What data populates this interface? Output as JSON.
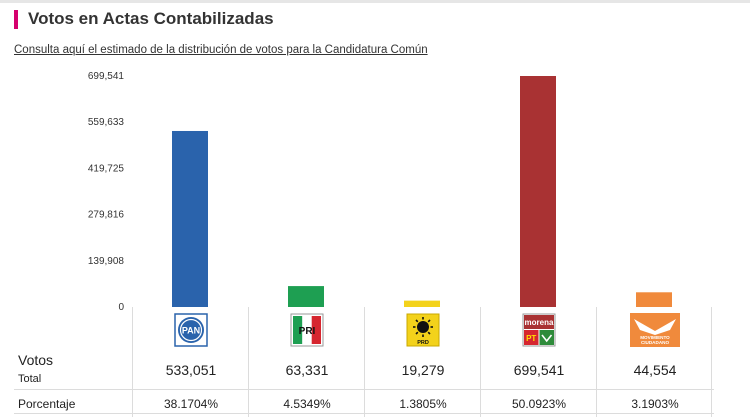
{
  "header": {
    "title": "Votos en Actas Contabilizadas",
    "link_text": "Consulta aquí el estimado de la distribución de votos para la Candidatura Común"
  },
  "colors": {
    "accent": "#d6006e",
    "pan": "#2a63ac",
    "pri": "#1e9f52",
    "prd": "#f3d21b",
    "morena": "#a93233",
    "mc": "#f08a3c"
  },
  "chart_data": {
    "type": "bar",
    "categories": [
      "PAN",
      "PRI",
      "PRD",
      "MORENA-PT-PVEM",
      "MC"
    ],
    "values": [
      533051,
      63331,
      19279,
      699541,
      44554
    ],
    "yticks": [
      "0",
      "139,908",
      "279,816",
      "419,725",
      "559,633",
      "699,541"
    ],
    "ylim": [
      0,
      699541
    ],
    "grid": false,
    "legend": "none",
    "bar_colors": [
      "#2a63ac",
      "#1e9f52",
      "#f3d21b",
      "#a93233",
      "#f08a3c"
    ]
  },
  "table": {
    "votes_label": "Votos",
    "total_label": "Total",
    "pct_label": "Porcentaje",
    "parties": [
      {
        "logo": "PAN",
        "logo_icon": "pan-logo-icon",
        "votes": "533,051",
        "pct": "38.1704%"
      },
      {
        "logo": "PRI",
        "logo_icon": "pri-logo-icon",
        "votes": "63,331",
        "pct": "4.5349%"
      },
      {
        "logo": "PRD",
        "logo_icon": "prd-logo-icon",
        "votes": "19,279",
        "pct": "1.3805%"
      },
      {
        "logo": "morena",
        "logo_sub": "PT",
        "logo_icon": "morena-pt-pvem-logo-icon",
        "votes": "699,541",
        "pct": "50.0923%"
      },
      {
        "logo": "MOVIMIENTO CIUDADANO",
        "logo_icon": "movimiento-ciudadano-logo-icon",
        "votes": "44,554",
        "pct": "3.1903%"
      }
    ]
  }
}
